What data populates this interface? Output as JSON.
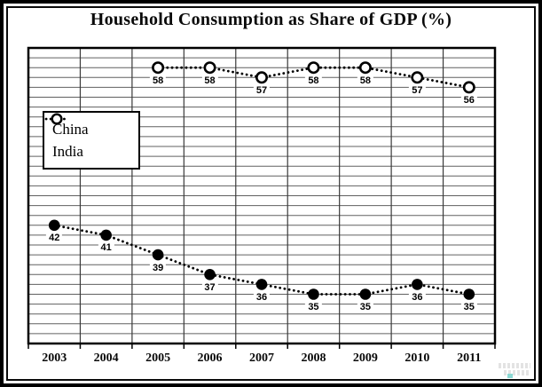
{
  "title": "Household Consumption as Share of GDP (%)",
  "legend": {
    "entries": [
      {
        "label": "China",
        "marker": "filled-circle"
      },
      {
        "label": "India",
        "marker": "open-circle"
      }
    ]
  },
  "chart_data": {
    "type": "line",
    "title": "Household Consumption as Share of GDP (%)",
    "categories": [
      "2003",
      "2004",
      "2005",
      "2006",
      "2007",
      "2008",
      "2009",
      "2010",
      "2011"
    ],
    "series": [
      {
        "name": "China",
        "marker": "filled-circle",
        "line_style": "dotted",
        "color": "#000000",
        "values": [
          42,
          41,
          39,
          37,
          36,
          35,
          35,
          36,
          35
        ]
      },
      {
        "name": "India",
        "marker": "open-circle",
        "line_style": "dotted",
        "color": "#000000",
        "values": [
          null,
          null,
          58,
          58,
          57,
          58,
          58,
          57,
          56
        ]
      }
    ],
    "xlabel": "",
    "ylabel": "",
    "ylim": [
      30,
      60
    ],
    "y_gridline_step": 1,
    "y_axis_labels_visible": false,
    "x_gridlines": "category-boundaries",
    "grid": true,
    "legend_position": "upper-left-inside",
    "data_labels": "below-points"
  },
  "colors": {
    "line": "#000000",
    "grid_horizontal": "#606060",
    "grid_vertical": "#3a3a3a",
    "plot_border": "#000000",
    "background": "#ffffff"
  }
}
